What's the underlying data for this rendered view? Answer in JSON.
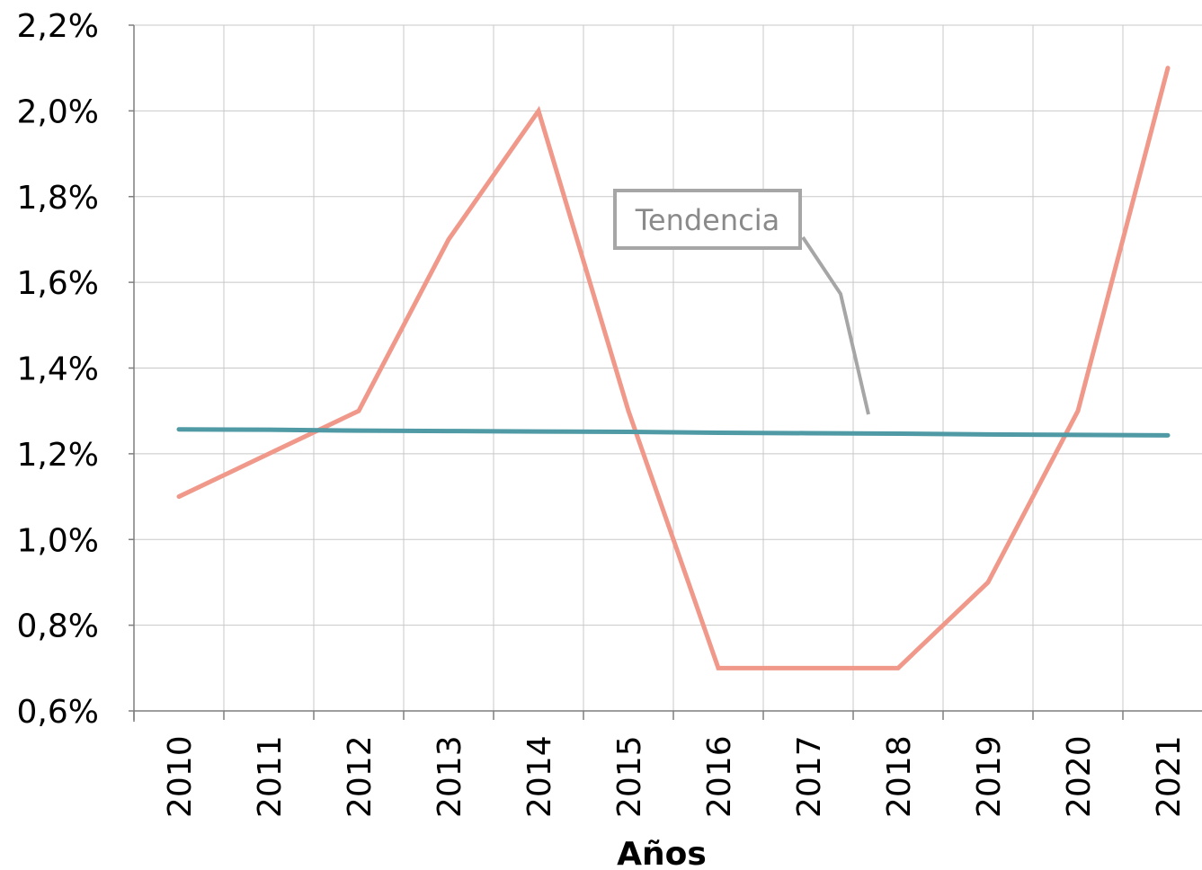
{
  "chart_data": {
    "type": "line",
    "title": "",
    "xlabel": "Años",
    "ylabel": "",
    "categories": [
      "2010",
      "2011",
      "2012",
      "2013",
      "2014",
      "2015",
      "2016",
      "2017",
      "2018",
      "2019",
      "2020",
      "2021"
    ],
    "yticks": [
      "0,6%",
      "0,8%",
      "1,0%",
      "1,2%",
      "1,4%",
      "1,6%",
      "1,8%",
      "2,0%",
      "2,2%"
    ],
    "ylim": [
      0.6,
      2.2
    ],
    "grid": true,
    "legend": "none",
    "series": [
      {
        "values": [
          1.1,
          1.2,
          1.3,
          1.7,
          2.0,
          1.3,
          0.7,
          0.7,
          0.7,
          0.9,
          1.3,
          2.1
        ],
        "color": "#f0998a"
      },
      {
        "trend": true,
        "values": [
          1.257,
          1.256,
          1.254,
          1.253,
          1.252,
          1.251,
          1.249,
          1.248,
          1.247,
          1.245,
          1.244,
          1.243
        ],
        "color": "#4f9aa4"
      }
    ],
    "annotations": [
      {
        "text": "Tendencia",
        "color": "#a6a6a6",
        "points_to": "trend-line"
      }
    ]
  }
}
